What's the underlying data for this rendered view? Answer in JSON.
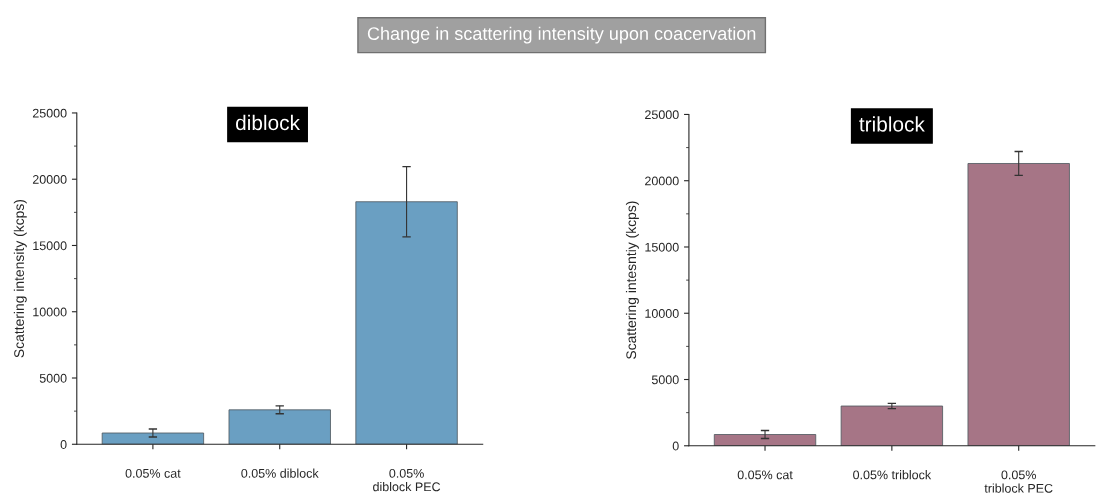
{
  "chart_data": [
    {
      "type": "bar",
      "title": "diblock",
      "ylabel": "Scattering intensity (kcps)",
      "annotations": [
        "Change in scattering intensity upon coacervation"
      ],
      "categories": [
        "0.05% cat",
        "0.05% diblock",
        "0.05%\ndiblock PEC"
      ],
      "values": [
        850,
        2600,
        18300
      ],
      "errors": [
        300,
        300,
        2650
      ],
      "color": "#6a9fc2",
      "ylim": [
        0,
        25000
      ],
      "yticks": [
        0,
        5000,
        10000,
        15000,
        20000,
        25000
      ],
      "grid": false
    },
    {
      "type": "bar",
      "title": "triblock",
      "ylabel": "Scattering intesntiy (kcps)",
      "categories": [
        "0.05% cat",
        "0.05% triblock",
        "0.05%\ntriblock PEC"
      ],
      "values": [
        850,
        3000,
        21300
      ],
      "errors": [
        300,
        200,
        900
      ],
      "color": "#a67586",
      "ylim": [
        0,
        25000
      ],
      "yticks": [
        0,
        5000,
        10000,
        15000,
        20000,
        25000
      ],
      "grid": false
    }
  ]
}
